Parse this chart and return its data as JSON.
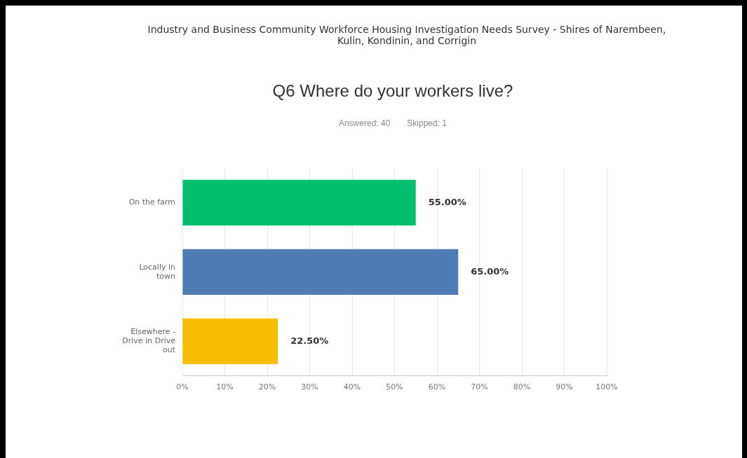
{
  "chart_data": {
    "type": "bar",
    "orientation": "horizontal",
    "title": "Q6 Where do your workers live?",
    "annotations": [
      "Industry and Business Community Workforce Housing Investigation Needs Survey - Shires of Narembeen, Kulin, Kondinin, and Corrigin",
      "Answered: 40",
      "Skipped: 1"
    ],
    "categories": [
      "On the farm",
      "Locally in town",
      "Elsewhere - Drive in Drive out"
    ],
    "values": [
      55,
      65,
      22.5
    ],
    "colors": [
      "#00bf6f",
      "#507cb6",
      "#f9be00"
    ],
    "value_labels": [
      "55.00%",
      "65.00%",
      "22.50%"
    ],
    "xlim": [
      0,
      100
    ],
    "xticks": [
      {
        "value": 0,
        "label": "0%"
      },
      {
        "value": 10,
        "label": "10%"
      },
      {
        "value": 20,
        "label": "20%"
      },
      {
        "value": 30,
        "label": "30%"
      },
      {
        "value": 40,
        "label": "40%"
      },
      {
        "value": 50,
        "label": "50%"
      },
      {
        "value": 60,
        "label": "60%"
      },
      {
        "value": 70,
        "label": "70%"
      },
      {
        "value": 80,
        "label": "80%"
      },
      {
        "value": 90,
        "label": "90%"
      },
      {
        "value": 100,
        "label": "100%"
      }
    ],
    "grid": "x",
    "legend": false
  }
}
